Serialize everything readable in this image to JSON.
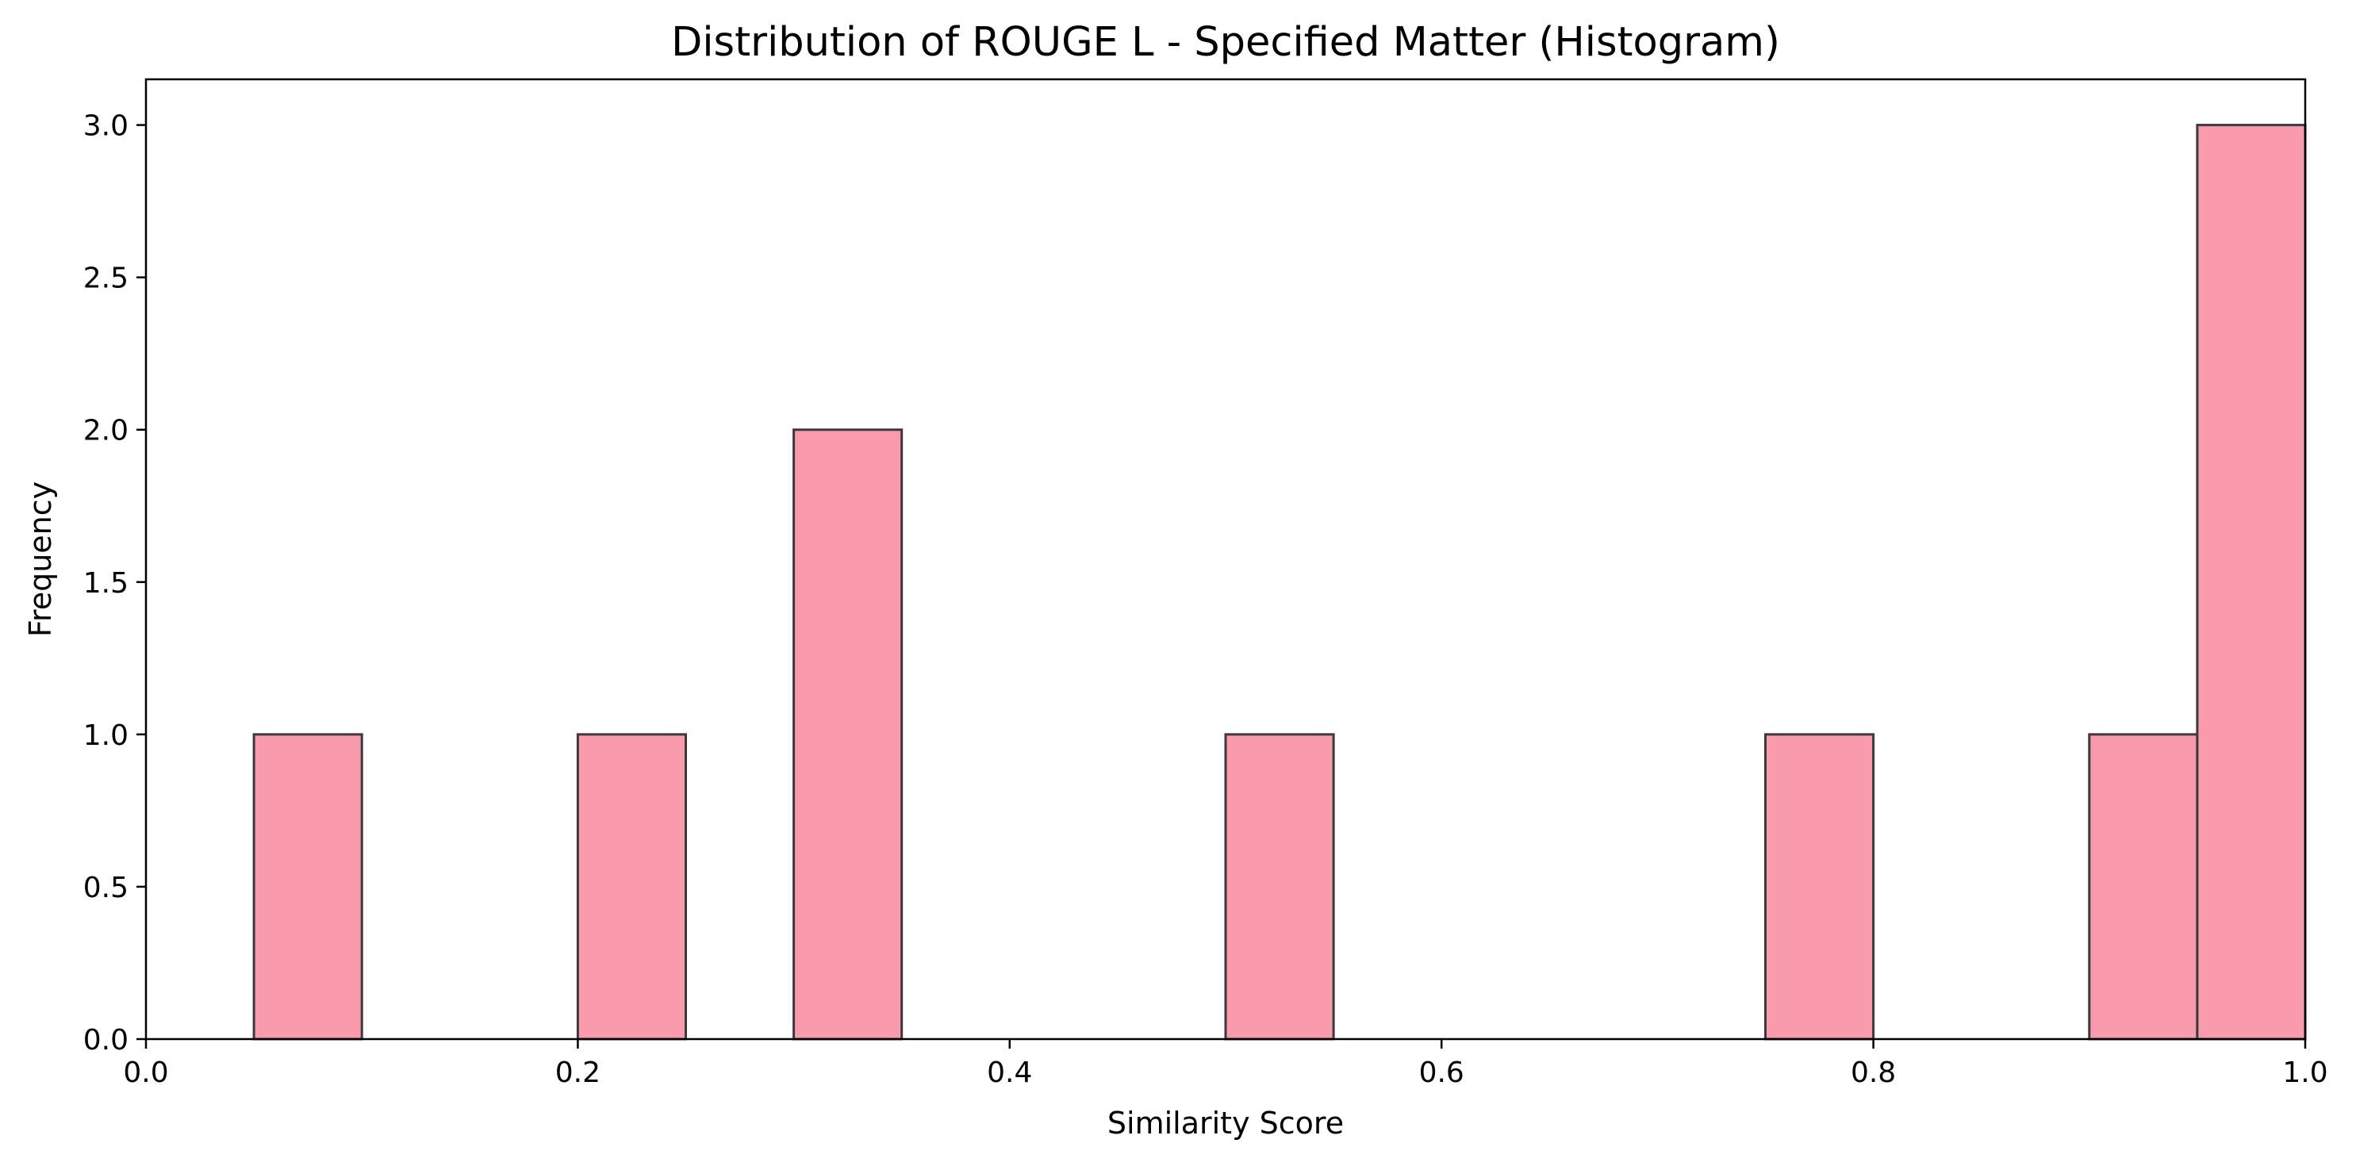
{
  "chart_data": {
    "type": "bar",
    "title": "Distribution of ROUGE L - Specified Matter (Histogram)",
    "xlabel": "Similarity Score",
    "ylabel": "Frequency",
    "xlim": [
      0.0,
      1.0
    ],
    "ylim": [
      0.0,
      3.15
    ],
    "x_ticks": [
      "0.0",
      "0.2",
      "0.4",
      "0.6",
      "0.8",
      "1.0"
    ],
    "y_ticks": [
      "0.0",
      "0.5",
      "1.0",
      "1.5",
      "2.0",
      "2.5",
      "3.0"
    ],
    "bin_width": 0.05,
    "bins": [
      {
        "start": 0.05,
        "end": 0.1,
        "count": 1
      },
      {
        "start": 0.2,
        "end": 0.25,
        "count": 1
      },
      {
        "start": 0.3,
        "end": 0.35,
        "count": 2
      },
      {
        "start": 0.5,
        "end": 0.55,
        "count": 1
      },
      {
        "start": 0.75,
        "end": 0.8,
        "count": 1
      },
      {
        "start": 0.9,
        "end": 0.95,
        "count": 1
      },
      {
        "start": 0.95,
        "end": 1.0,
        "count": 3
      }
    ],
    "grid": false,
    "legend": "none",
    "colors": {
      "bar_fill": "#f99aad",
      "bar_edge": "#3a3a3a"
    }
  }
}
